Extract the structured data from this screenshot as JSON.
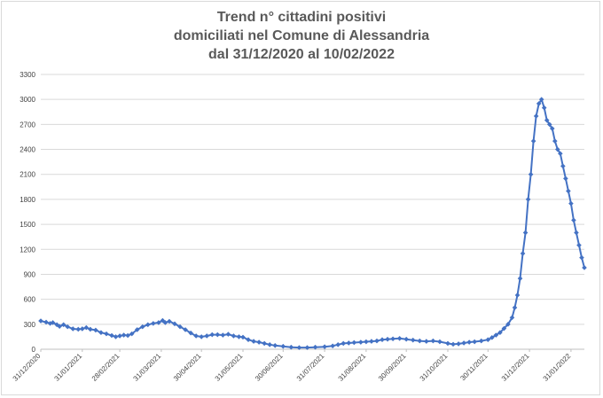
{
  "chart_data": {
    "type": "line",
    "title_lines": [
      "Trend n° cittadini positivi",
      "domiciliati nel Comune di Alessandria",
      "dal 31/12/2020 al 10/02/2022"
    ],
    "x_start": "2020-12-31",
    "x_end": "2022-02-10",
    "ylim": [
      0,
      3300
    ],
    "y_ticks": [
      0,
      300,
      600,
      900,
      1200,
      1500,
      1800,
      2100,
      2400,
      2700,
      3000,
      3300
    ],
    "y_tick_labels": [
      "0",
      "300",
      "600",
      "900",
      "1200",
      "1500",
      "1800",
      "2100",
      "2400",
      "2700",
      "3000",
      "3300"
    ],
    "x_ticks": [
      "2020-12-31",
      "2021-01-31",
      "2021-02-28",
      "2021-03-31",
      "2021-04-30",
      "2021-05-31",
      "2021-06-30",
      "2021-07-31",
      "2021-08-31",
      "2021-09-30",
      "2021-10-31",
      "2021-11-30",
      "2021-12-31",
      "2022-01-31"
    ],
    "x_tick_labels": [
      "31/12/2020",
      "31/01/2021",
      "28/02/2021",
      "31/03/2021",
      "30/04/2021",
      "31/05/2021",
      "30/06/2021",
      "31/07/2021",
      "31/08/2021",
      "30/09/2021",
      "31/10/2021",
      "30/11/2021",
      "31/12/2021",
      "31/01/2022"
    ],
    "grid": true,
    "legend": "none",
    "series": [
      {
        "color": "#4472c4",
        "points": [
          [
            "2020-12-31",
            340
          ],
          [
            "2021-01-04",
            325
          ],
          [
            "2021-01-07",
            310
          ],
          [
            "2021-01-09",
            320
          ],
          [
            "2021-01-12",
            295
          ],
          [
            "2021-01-14",
            275
          ],
          [
            "2021-01-17",
            295
          ],
          [
            "2021-01-20",
            270
          ],
          [
            "2021-01-24",
            245
          ],
          [
            "2021-01-28",
            240
          ],
          [
            "2021-01-31",
            245
          ],
          [
            "2021-02-03",
            260
          ],
          [
            "2021-02-06",
            240
          ],
          [
            "2021-02-10",
            230
          ],
          [
            "2021-02-14",
            200
          ],
          [
            "2021-02-18",
            185
          ],
          [
            "2021-02-22",
            165
          ],
          [
            "2021-02-25",
            150
          ],
          [
            "2021-02-28",
            160
          ],
          [
            "2021-03-03",
            170
          ],
          [
            "2021-03-06",
            165
          ],
          [
            "2021-03-09",
            185
          ],
          [
            "2021-03-13",
            235
          ],
          [
            "2021-03-17",
            270
          ],
          [
            "2021-03-21",
            295
          ],
          [
            "2021-03-25",
            310
          ],
          [
            "2021-03-29",
            320
          ],
          [
            "2021-04-01",
            345
          ],
          [
            "2021-04-03",
            320
          ],
          [
            "2021-04-06",
            335
          ],
          [
            "2021-04-10",
            305
          ],
          [
            "2021-04-14",
            270
          ],
          [
            "2021-04-18",
            235
          ],
          [
            "2021-04-22",
            195
          ],
          [
            "2021-04-26",
            160
          ],
          [
            "2021-04-30",
            150
          ],
          [
            "2021-05-04",
            160
          ],
          [
            "2021-05-08",
            175
          ],
          [
            "2021-05-12",
            175
          ],
          [
            "2021-05-16",
            170
          ],
          [
            "2021-05-20",
            180
          ],
          [
            "2021-05-24",
            160
          ],
          [
            "2021-05-28",
            150
          ],
          [
            "2021-05-31",
            145
          ],
          [
            "2021-06-04",
            115
          ],
          [
            "2021-06-08",
            95
          ],
          [
            "2021-06-12",
            85
          ],
          [
            "2021-06-16",
            70
          ],
          [
            "2021-06-20",
            55
          ],
          [
            "2021-06-24",
            45
          ],
          [
            "2021-06-30",
            35
          ],
          [
            "2021-07-06",
            25
          ],
          [
            "2021-07-12",
            20
          ],
          [
            "2021-07-18",
            20
          ],
          [
            "2021-07-24",
            25
          ],
          [
            "2021-07-31",
            30
          ],
          [
            "2021-08-06",
            40
          ],
          [
            "2021-08-10",
            55
          ],
          [
            "2021-08-14",
            70
          ],
          [
            "2021-08-18",
            75
          ],
          [
            "2021-08-22",
            80
          ],
          [
            "2021-08-27",
            85
          ],
          [
            "2021-08-31",
            90
          ],
          [
            "2021-09-04",
            95
          ],
          [
            "2021-09-08",
            100
          ],
          [
            "2021-09-12",
            115
          ],
          [
            "2021-09-16",
            120
          ],
          [
            "2021-09-20",
            125
          ],
          [
            "2021-09-25",
            130
          ],
          [
            "2021-09-30",
            120
          ],
          [
            "2021-10-05",
            110
          ],
          [
            "2021-10-10",
            100
          ],
          [
            "2021-10-15",
            95
          ],
          [
            "2021-10-20",
            100
          ],
          [
            "2021-10-25",
            90
          ],
          [
            "2021-10-31",
            70
          ],
          [
            "2021-11-04",
            60
          ],
          [
            "2021-11-08",
            65
          ],
          [
            "2021-11-12",
            75
          ],
          [
            "2021-11-16",
            85
          ],
          [
            "2021-11-20",
            90
          ],
          [
            "2021-11-25",
            100
          ],
          [
            "2021-11-30",
            115
          ],
          [
            "2021-12-03",
            140
          ],
          [
            "2021-12-06",
            170
          ],
          [
            "2021-12-09",
            200
          ],
          [
            "2021-12-12",
            250
          ],
          [
            "2021-12-15",
            300
          ],
          [
            "2021-12-18",
            380
          ],
          [
            "2021-12-20",
            500
          ],
          [
            "2021-12-22",
            650
          ],
          [
            "2021-12-24",
            850
          ],
          [
            "2021-12-26",
            1150
          ],
          [
            "2021-12-28",
            1400
          ],
          [
            "2021-12-30",
            1800
          ],
          [
            "2022-01-01",
            2100
          ],
          [
            "2022-01-03",
            2500
          ],
          [
            "2022-01-05",
            2800
          ],
          [
            "2022-01-07",
            2950
          ],
          [
            "2022-01-09",
            3000
          ],
          [
            "2022-01-11",
            2900
          ],
          [
            "2022-01-13",
            2750
          ],
          [
            "2022-01-15",
            2700
          ],
          [
            "2022-01-17",
            2650
          ],
          [
            "2022-01-19",
            2500
          ],
          [
            "2022-01-21",
            2400
          ],
          [
            "2022-01-23",
            2350
          ],
          [
            "2022-01-25",
            2200
          ],
          [
            "2022-01-27",
            2050
          ],
          [
            "2022-01-29",
            1900
          ],
          [
            "2022-01-31",
            1750
          ],
          [
            "2022-02-02",
            1550
          ],
          [
            "2022-02-04",
            1400
          ],
          [
            "2022-02-06",
            1250
          ],
          [
            "2022-02-08",
            1100
          ],
          [
            "2022-02-10",
            980
          ]
        ]
      }
    ]
  }
}
